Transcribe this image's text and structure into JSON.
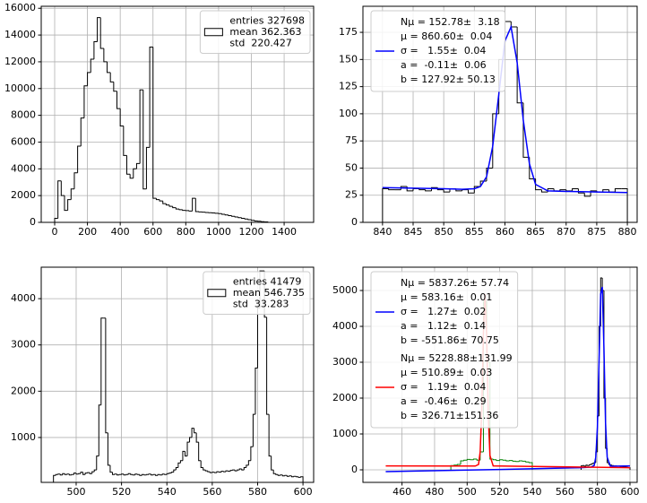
{
  "chart_data": [
    {
      "type": "histogram",
      "grid": true,
      "legend": "upper right",
      "xlim": [
        -82,
        1580
      ],
      "ylim": [
        0,
        16150
      ],
      "xticks": [
        0,
        200,
        400,
        600,
        800,
        1000,
        1200,
        1400
      ],
      "yticks": [
        0,
        2000,
        4000,
        6000,
        8000,
        10000,
        12000,
        14000,
        16000
      ],
      "series": [
        {
          "type": "step",
          "color": "#000000",
          "name": [
            "entries 327698",
            "mean 362.363",
            "std  220.427"
          ],
          "bins": [
            0,
            20,
            40,
            60,
            80,
            100,
            120,
            140,
            160,
            180,
            200,
            220,
            240,
            260,
            280,
            300,
            320,
            340,
            360,
            380,
            400,
            420,
            440,
            460,
            480,
            500,
            520,
            540,
            560,
            580,
            600,
            620,
            640,
            660,
            680,
            700,
            720,
            740,
            760,
            780,
            800,
            820,
            840,
            860,
            880,
            900,
            920,
            940,
            960,
            980,
            1000,
            1020,
            1040,
            1060,
            1080,
            1100,
            1120,
            1140,
            1160,
            1180,
            1200,
            1220,
            1240,
            1260,
            1280,
            1300
          ],
          "values": [
            300,
            3100,
            2000,
            900,
            1700,
            2500,
            3700,
            5700,
            7800,
            10200,
            11200,
            12200,
            13500,
            15300,
            13000,
            12000,
            11200,
            10500,
            9800,
            8500,
            7200,
            5000,
            3600,
            3300,
            4000,
            4400,
            9900,
            2500,
            5600,
            13100,
            1800,
            1700,
            1600,
            1400,
            1300,
            1200,
            1100,
            1000,
            950,
            900,
            880,
            850,
            1800,
            800,
            780,
            760,
            740,
            720,
            700,
            680,
            650,
            600,
            550,
            500,
            450,
            400,
            350,
            300,
            250,
            200,
            150,
            100,
            80,
            50,
            30
          ]
        }
      ]
    },
    {
      "type": "histogram",
      "grid": true,
      "legend": "upper left",
      "xlim": [
        836.8,
        881.6
      ],
      "ylim": [
        0,
        199
      ],
      "xticks": [
        840,
        845,
        850,
        855,
        860,
        865,
        870,
        875,
        880
      ],
      "yticks": [
        0,
        25,
        50,
        75,
        100,
        125,
        150,
        175
      ],
      "series": [
        {
          "type": "step",
          "color": "#000000",
          "bins": [
            840,
            841,
            842,
            843,
            844,
            845,
            846,
            847,
            848,
            849,
            850,
            851,
            852,
            853,
            854,
            855,
            856,
            857,
            858,
            859,
            860,
            861,
            862,
            863,
            864,
            865,
            866,
            867,
            868,
            869,
            870,
            871,
            872,
            873,
            874,
            875,
            876,
            877,
            878,
            879,
            880
          ],
          "values": [
            31,
            30,
            30,
            33,
            29,
            31,
            30,
            29,
            32,
            30,
            28,
            31,
            29,
            30,
            27,
            33,
            38,
            50,
            100,
            150,
            185,
            180,
            110,
            60,
            40,
            30,
            28,
            31,
            29,
            30,
            29,
            31,
            27,
            24,
            29,
            28,
            30,
            28,
            31,
            31
          ]
        },
        {
          "type": "line",
          "color": "#0000ff",
          "name": [
            "Nμ = 152.78±  3.18",
            "μ = 860.60±  0.04",
            "σ =   1.55±  0.04",
            "a =  -0.11±  0.06",
            "b = 127.92± 50.13"
          ],
          "x": [
            840,
            845,
            850,
            853,
            855,
            856,
            857,
            858,
            859,
            860,
            861,
            862,
            863,
            864,
            865,
            867,
            870,
            875,
            880
          ],
          "values": [
            32,
            31.5,
            31,
            30.5,
            31,
            33,
            42,
            70,
            118,
            167,
            180,
            147,
            94,
            54,
            35,
            29,
            28.5,
            28,
            27.5
          ]
        }
      ]
    },
    {
      "type": "histogram",
      "grid": true,
      "legend": "upper right",
      "xlim": [
        484.6,
        604.7
      ],
      "ylim": [
        30,
        4680
      ],
      "xticks": [
        500,
        520,
        540,
        560,
        580,
        600
      ],
      "yticks": [
        1000,
        2000,
        3000,
        4000
      ],
      "series": [
        {
          "type": "step",
          "color": "#000000",
          "name": [
            "entries 41479",
            "mean 546.735",
            "std  33.283"
          ],
          "bins": [
            490,
            491,
            492,
            493,
            494,
            495,
            496,
            497,
            498,
            499,
            500,
            501,
            502,
            503,
            504,
            505,
            506,
            507,
            508,
            509,
            510,
            511,
            512,
            513,
            514,
            515,
            516,
            517,
            518,
            519,
            520,
            521,
            522,
            523,
            524,
            525,
            526,
            527,
            528,
            529,
            530,
            531,
            532,
            533,
            534,
            535,
            536,
            537,
            538,
            539,
            540,
            541,
            542,
            543,
            544,
            545,
            546,
            547,
            548,
            549,
            550,
            551,
            552,
            553,
            554,
            555,
            556,
            557,
            558,
            559,
            560,
            561,
            562,
            563,
            564,
            565,
            566,
            567,
            568,
            569,
            570,
            571,
            572,
            573,
            574,
            575,
            576,
            577,
            578,
            579,
            580,
            581,
            582,
            583,
            584,
            585,
            586,
            587,
            588,
            589,
            590,
            591,
            592,
            593,
            594,
            595,
            596,
            597,
            598,
            599,
            600
          ],
          "values": [
            180,
            200,
            210,
            190,
            220,
            200,
            210,
            190,
            200,
            230,
            210,
            220,
            250,
            200,
            230,
            240,
            220,
            260,
            300,
            600,
            1700,
            3580,
            3580,
            1100,
            400,
            250,
            200,
            210,
            190,
            200,
            210,
            190,
            200,
            220,
            200,
            190,
            210,
            200,
            180,
            200,
            190,
            200,
            210,
            190,
            200,
            180,
            200,
            190,
            210,
            200,
            220,
            230,
            250,
            300,
            350,
            450,
            500,
            700,
            600,
            900,
            1000,
            1200,
            1100,
            900,
            500,
            350,
            300,
            280,
            260,
            240,
            250,
            240,
            260,
            250,
            270,
            260,
            280,
            270,
            290,
            300,
            280,
            300,
            320,
            300,
            350,
            400,
            500,
            800,
            1500,
            2500,
            3800,
            4600,
            4600,
            3600,
            1500,
            600,
            300,
            220,
            200,
            180,
            190,
            170,
            180,
            160,
            170,
            150,
            160,
            150,
            140,
            150
          ]
        }
      ]
    },
    {
      "type": "histogram",
      "grid": true,
      "legend": "upper left",
      "xlim": [
        436,
        604.4
      ],
      "ylim": [
        -350,
        5650
      ],
      "xticks": [
        460,
        480,
        500,
        520,
        540,
        560,
        580,
        600
      ],
      "yticks": [
        0,
        1000,
        2000,
        3000,
        4000,
        5000
      ],
      "series": [
        {
          "type": "step",
          "color": "#008000",
          "bins": [
            490,
            492,
            494,
            496,
            498,
            500,
            502,
            504,
            506,
            508,
            510,
            512,
            514,
            516,
            518,
            520,
            522,
            524,
            526,
            528,
            530,
            532,
            534,
            536,
            538,
            540
          ],
          "values": [
            120,
            130,
            150,
            250,
            270,
            290,
            280,
            300,
            270,
            500,
            4700,
            3000,
            300,
            280,
            260,
            280,
            270,
            250,
            260,
            240,
            230,
            250,
            240,
            220,
            200
          ]
        },
        {
          "type": "step",
          "color": "#000000",
          "bins": [
            570,
            571,
            572,
            573,
            574,
            575,
            576,
            577,
            578,
            579,
            580,
            581,
            582,
            583,
            584,
            585,
            586,
            587,
            588,
            589,
            590,
            591,
            592,
            593,
            594,
            595,
            596,
            597,
            598,
            599,
            600
          ],
          "values": [
            110,
            120,
            100,
            130,
            120,
            140,
            160,
            180,
            200,
            500,
            1500,
            4000,
            5350,
            5000,
            2000,
            600,
            200,
            150,
            130,
            120,
            110,
            110,
            100,
            100,
            90,
            90,
            80,
            80,
            70,
            60
          ]
        },
        {
          "type": "line",
          "color": "#0000ff",
          "name": [
            "Nμ = 5837.26± 57.74",
            "μ = 583.16±  0.01",
            "σ =   1.27±  0.02",
            "a =   1.12±  0.14",
            "b = -551.86± 70.75"
          ],
          "x": [
            450,
            520,
            570,
            576,
            578,
            579,
            580,
            581,
            582,
            583,
            584,
            585,
            586,
            588,
            600
          ],
          "values": [
            -50,
            10,
            60,
            75,
            120,
            350,
            1200,
            3000,
            4900,
            5100,
            3400,
            1300,
            350,
            100,
            110
          ]
        },
        {
          "type": "line",
          "color": "#ff0000",
          "name": [
            "Nμ = 5228.88±131.99",
            "μ = 510.89±  0.03",
            "σ =   1.19±  0.04",
            "a =  -0.46±  0.29",
            "b = 326.71±151.36"
          ],
          "x": [
            450,
            490,
            505,
            507,
            508,
            509,
            510,
            511,
            512,
            513,
            514,
            516,
            530,
            600
          ],
          "values": [
            110,
            105,
            105,
            150,
            500,
            1700,
            3800,
            4900,
            3700,
            1500,
            400,
            110,
            100,
            60
          ]
        }
      ]
    }
  ]
}
